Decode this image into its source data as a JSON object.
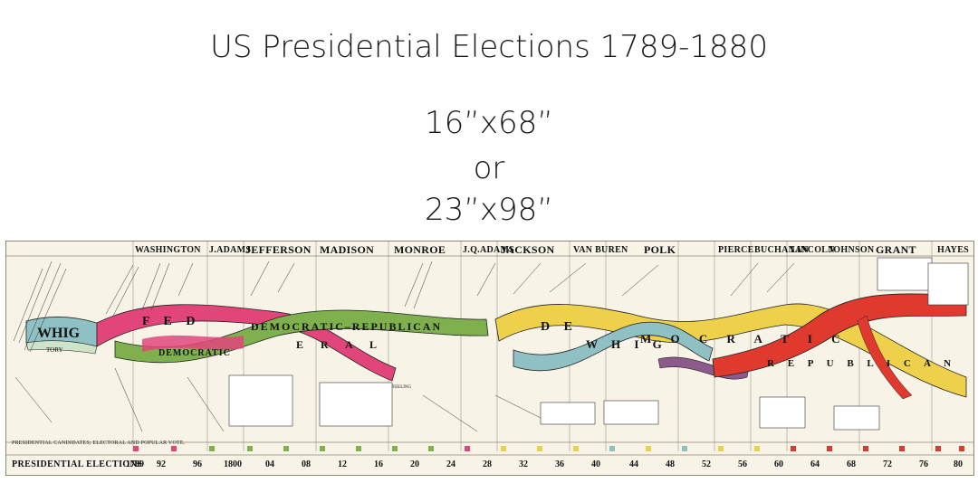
{
  "heading": {
    "title": "US Presidential Elections 1789-1880",
    "size_small": "16”x68”",
    "separator": "or",
    "size_large": "23”x98”"
  },
  "chart": {
    "presidents": [
      "WASHINGTON",
      "J.ADAMS",
      "JEFFERSON",
      "MADISON",
      "MONROE",
      "J.Q.ADAMS",
      "JACKSON",
      "VAN BUREN",
      "POLK",
      "PIERCE",
      "BUCHANAN",
      "LINCOLN",
      "JOHNSON",
      "GRANT",
      "HAYES"
    ],
    "parties": {
      "whig_left": "WHIG",
      "tory": "TORY",
      "federal_top": "F E D",
      "democratic_republican": "DEMOCRATIC–REPUBLICAN",
      "democratic": "DEMOCRATIC",
      "federal_bottom": "E R A L",
      "democratic_mid": "D E",
      "whig_mid": "W H I G",
      "democratic_right": "M O C R A T I C",
      "republican": "R E P U B L I C A N",
      "era": "ERA OF GOOD FEELING"
    },
    "row_label": "PRESIDENTIAL CANDIDATES; ELECTORAL AND POPULAR VOTE.",
    "bottom_label": "PRESIDENTIAL ELECTIONS",
    "years": [
      "1789",
      "92",
      "96",
      "1800",
      "04",
      "08",
      "12",
      "16",
      "20",
      "24",
      "28",
      "32",
      "36",
      "40",
      "44",
      "48",
      "52",
      "56",
      "60",
      "64",
      "68",
      "72",
      "76",
      "80"
    ],
    "colors": {
      "whig": "#8fc0c4",
      "federal": "#e2457a",
      "dem_rep": "#7fb04e",
      "democratic": "#efd04a",
      "republican": "#e03a2e",
      "purple": "#8d5a8c",
      "paper": "#f7f3e6"
    }
  }
}
